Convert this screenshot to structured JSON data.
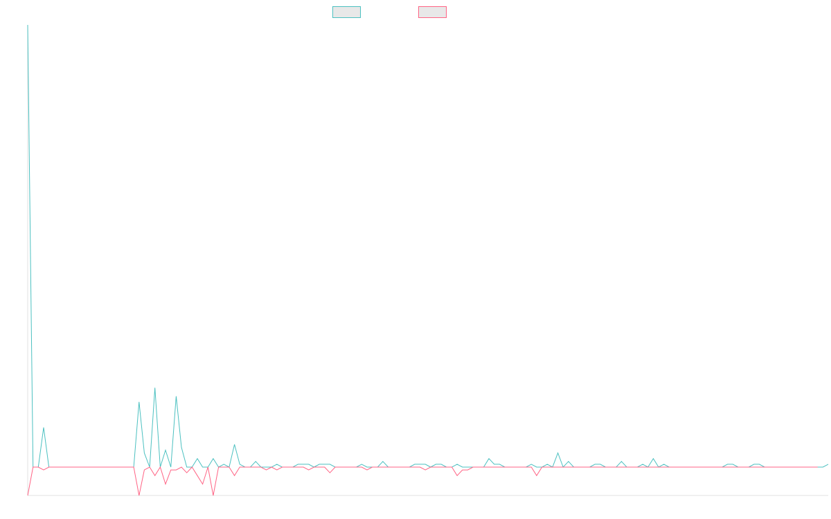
{
  "chart_data": {
    "type": "line",
    "title": "",
    "xlabel": "",
    "ylabel": "",
    "legend": {
      "placement": "top-center",
      "show_names": false
    },
    "grid": false,
    "x_count": 150,
    "ylim": [
      -1,
      15.6
    ],
    "series": [
      {
        "color": "#4bc0c0",
        "values": [
          15.6,
          0,
          0,
          1.4,
          0,
          0,
          0,
          0,
          0,
          0,
          0,
          0,
          0,
          0,
          0,
          0,
          0,
          0,
          0,
          0,
          0,
          2.3,
          0.5,
          0,
          2.8,
          0,
          0.6,
          0,
          2.5,
          0.7,
          0,
          0,
          0.3,
          0,
          0,
          0.3,
          0,
          0.1,
          0,
          0.8,
          0.1,
          0,
          0,
          0.2,
          0,
          0,
          0,
          0.1,
          0,
          0,
          0,
          0.1,
          0.1,
          0.1,
          0,
          0.1,
          0.1,
          0.1,
          0,
          0,
          0,
          0,
          0,
          0.1,
          0,
          0,
          0,
          0.2,
          0,
          0,
          0,
          0,
          0,
          0.1,
          0.1,
          0.1,
          0,
          0.1,
          0.1,
          0,
          0,
          0.1,
          0,
          0,
          0,
          0,
          0,
          0.3,
          0.1,
          0.1,
          0,
          0,
          0,
          0,
          0,
          0.1,
          0,
          0,
          0.1,
          0,
          0.5,
          0,
          0.2,
          0,
          0,
          0,
          0,
          0.1,
          0.1,
          0,
          0,
          0,
          0.2,
          0,
          0,
          0,
          0.1,
          0,
          0.3,
          0,
          0.1,
          0,
          0,
          0,
          0,
          0,
          0,
          0,
          0,
          0,
          0,
          0,
          0.1,
          0.1,
          0,
          0,
          0,
          0.1,
          0.1,
          0,
          0,
          0,
          0,
          0,
          0,
          0,
          0,
          0,
          0,
          0,
          0,
          0.1
        ],
        "pattern": "peaks"
      },
      {
        "color": "#ff6384",
        "values": [
          -1,
          0,
          0,
          -0.1,
          0,
          0,
          0,
          0,
          0,
          0,
          0,
          0,
          0,
          0,
          0,
          0,
          0,
          0,
          0,
          0,
          0,
          -1,
          -0.1,
          0,
          -0.3,
          0,
          -0.6,
          -0.1,
          -0.1,
          0,
          -0.2,
          0,
          -0.3,
          -0.6,
          0,
          -1,
          0,
          0,
          0,
          -0.3,
          0,
          0,
          0,
          0,
          0,
          -0.1,
          0,
          -0.1,
          0,
          0,
          0,
          0,
          0,
          -0.1,
          0,
          0,
          0,
          -0.2,
          0,
          0,
          0,
          0,
          0,
          0,
          -0.1,
          0,
          0,
          0,
          0,
          0,
          0,
          0,
          0,
          0,
          0,
          -0.1,
          0,
          0,
          0,
          0,
          0,
          -0.3,
          -0.1,
          -0.1,
          0,
          0,
          0,
          0,
          0,
          0,
          0,
          0,
          0,
          0,
          0,
          0,
          -0.3,
          0,
          0,
          0,
          0,
          0,
          0,
          0,
          0,
          0,
          0,
          0,
          0,
          0,
          0,
          0,
          0,
          0,
          0,
          0,
          0,
          0,
          0,
          0,
          0,
          0,
          0,
          0,
          0,
          0,
          0,
          0,
          0,
          0,
          0,
          0,
          0,
          0,
          0,
          0,
          0,
          0,
          0,
          0,
          0,
          0,
          0,
          0,
          0,
          0,
          0,
          0,
          0,
          0
        ],
        "pattern": "dips"
      }
    ]
  }
}
